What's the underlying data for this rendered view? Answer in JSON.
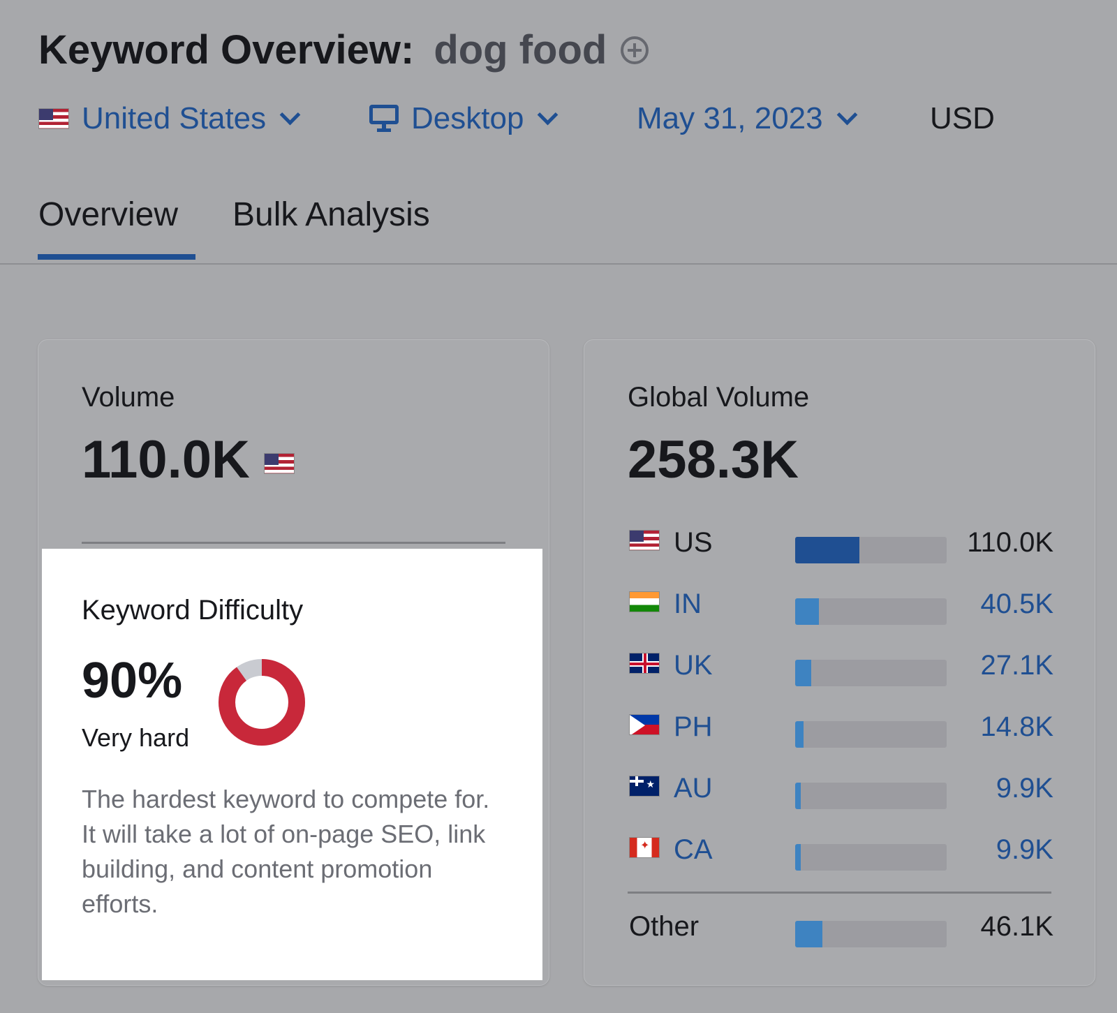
{
  "header": {
    "title": "Keyword Overview:",
    "keyword": "dog food"
  },
  "filters": {
    "country": "United States",
    "device": "Desktop",
    "date": "May 31, 2023",
    "currency": "USD"
  },
  "tabs": [
    {
      "label": "Overview",
      "active": true
    },
    {
      "label": "Bulk Analysis",
      "active": false
    }
  ],
  "volume": {
    "label": "Volume",
    "value": "110.0K"
  },
  "keyword_difficulty": {
    "label": "Keyword Difficulty",
    "value": "90%",
    "percent": 90,
    "level": "Very hard",
    "description": "The hardest keyword to compete for. It will take a lot of on-page SEO, link building, and content promotion efforts.",
    "donut_color": "#c8283a",
    "donut_track_color": "#c9cbd1"
  },
  "global_volume": {
    "label": "Global Volume",
    "value": "258.3K",
    "countries": [
      {
        "code": "US",
        "value": "110.0K",
        "share": 0.426,
        "flag": "us-flag-icon"
      },
      {
        "code": "IN",
        "value": "40.5K",
        "share": 0.157,
        "flag": "in-flag-icon"
      },
      {
        "code": "UK",
        "value": "27.1K",
        "share": 0.105,
        "flag": "uk-flag-icon"
      },
      {
        "code": "PH",
        "value": "14.8K",
        "share": 0.057,
        "flag": "ph-flag-icon"
      },
      {
        "code": "AU",
        "value": "9.9K",
        "share": 0.038,
        "flag": "au-flag-icon"
      },
      {
        "code": "CA",
        "value": "9.9K",
        "share": 0.038,
        "flag": "ca-flag-icon"
      }
    ],
    "other": {
      "label": "Other",
      "value": "46.1K",
      "share": 0.178
    }
  },
  "colors": {
    "accent": "#1f4f92",
    "bar_light": "#3e83c1",
    "bar_track": "#9c9ca1"
  }
}
